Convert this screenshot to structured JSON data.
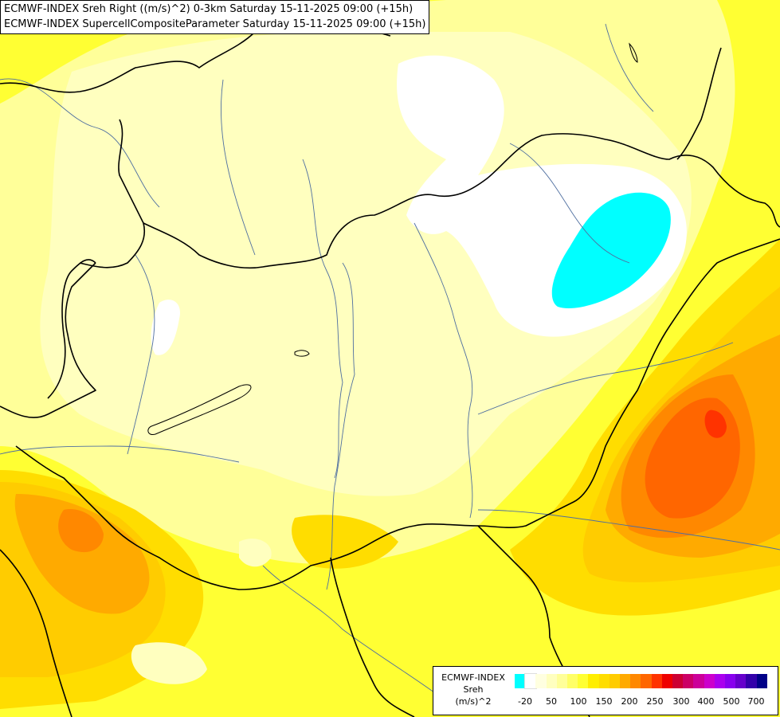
{
  "titles": {
    "line1": "ECMWF-INDEX Sreh Right ((m/s)^2) 0-3km Saturday 15-11-2025 09:00 (+15h)",
    "line2": "ECMWF-INDEX SupercellCompositeParameter Saturday 15-11-2025 09:00 (+15h)"
  },
  "legend": {
    "title_line1": "ECMWF-INDEX",
    "title_line2": "Sreh",
    "title_line3": "(m/s)^2",
    "colors": [
      "#00ffff",
      "#ffffff",
      "#ffffe0",
      "#ffffbf",
      "#ffff99",
      "#ffff66",
      "#ffff33",
      "#ffee00",
      "#ffdd00",
      "#ffcc00",
      "#ffaa00",
      "#ff8800",
      "#ff6600",
      "#ff3300",
      "#ee0000",
      "#cc0033",
      "#cc0066",
      "#cc0099",
      "#cc00cc",
      "#aa00ee",
      "#8800ee",
      "#6600cc",
      "#3300aa",
      "#000088"
    ],
    "ticks": [
      "-20",
      "50",
      "100",
      "150",
      "200",
      "250",
      "300",
      "400",
      "500",
      "700"
    ]
  },
  "map_colors": {
    "base": "#ffff33",
    "light": "#ffff99",
    "pale": "#ffffbf",
    "palest": "#ffffe0",
    "white": "#ffffff",
    "cyan": "#00ffff",
    "gold": "#ffdd00",
    "amber": "#ffcc00",
    "orange": "#ffaa00",
    "dark_orange": "#ff8800",
    "red_orange": "#ff6600",
    "red": "#ff3300",
    "border": "#000000",
    "river": "#4f6fa0"
  }
}
